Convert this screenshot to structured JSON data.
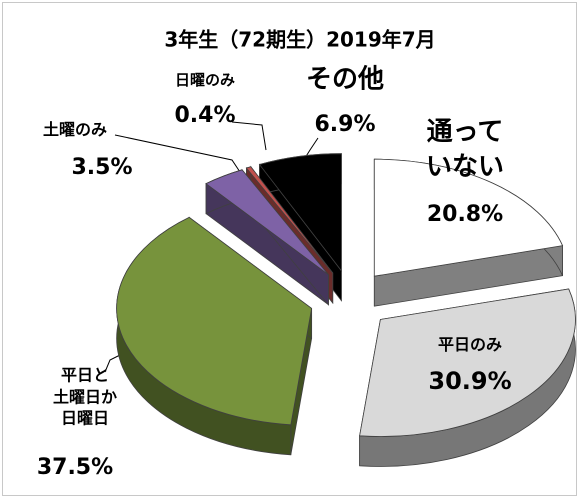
{
  "chart_data": {
    "type": "pie3d",
    "title": "3年生（72期生）2019年7月",
    "categories": [
      "通って\nいない",
      "平日のみ",
      "平日と\n土曜日か\n日曜日",
      "土曜のみ",
      "日曜のみ",
      "その他"
    ],
    "values": [
      20.8,
      30.9,
      37.5,
      3.5,
      0.4,
      6.9
    ],
    "value_labels": [
      "20.8%",
      "30.9%",
      "37.5%",
      "3.5%",
      "0.4%",
      "6.9%"
    ],
    "colors": [
      "#ffffff",
      "#d9d9d9",
      "#77933c",
      "#7e62a6",
      "#c0504d",
      "#000000"
    ]
  }
}
